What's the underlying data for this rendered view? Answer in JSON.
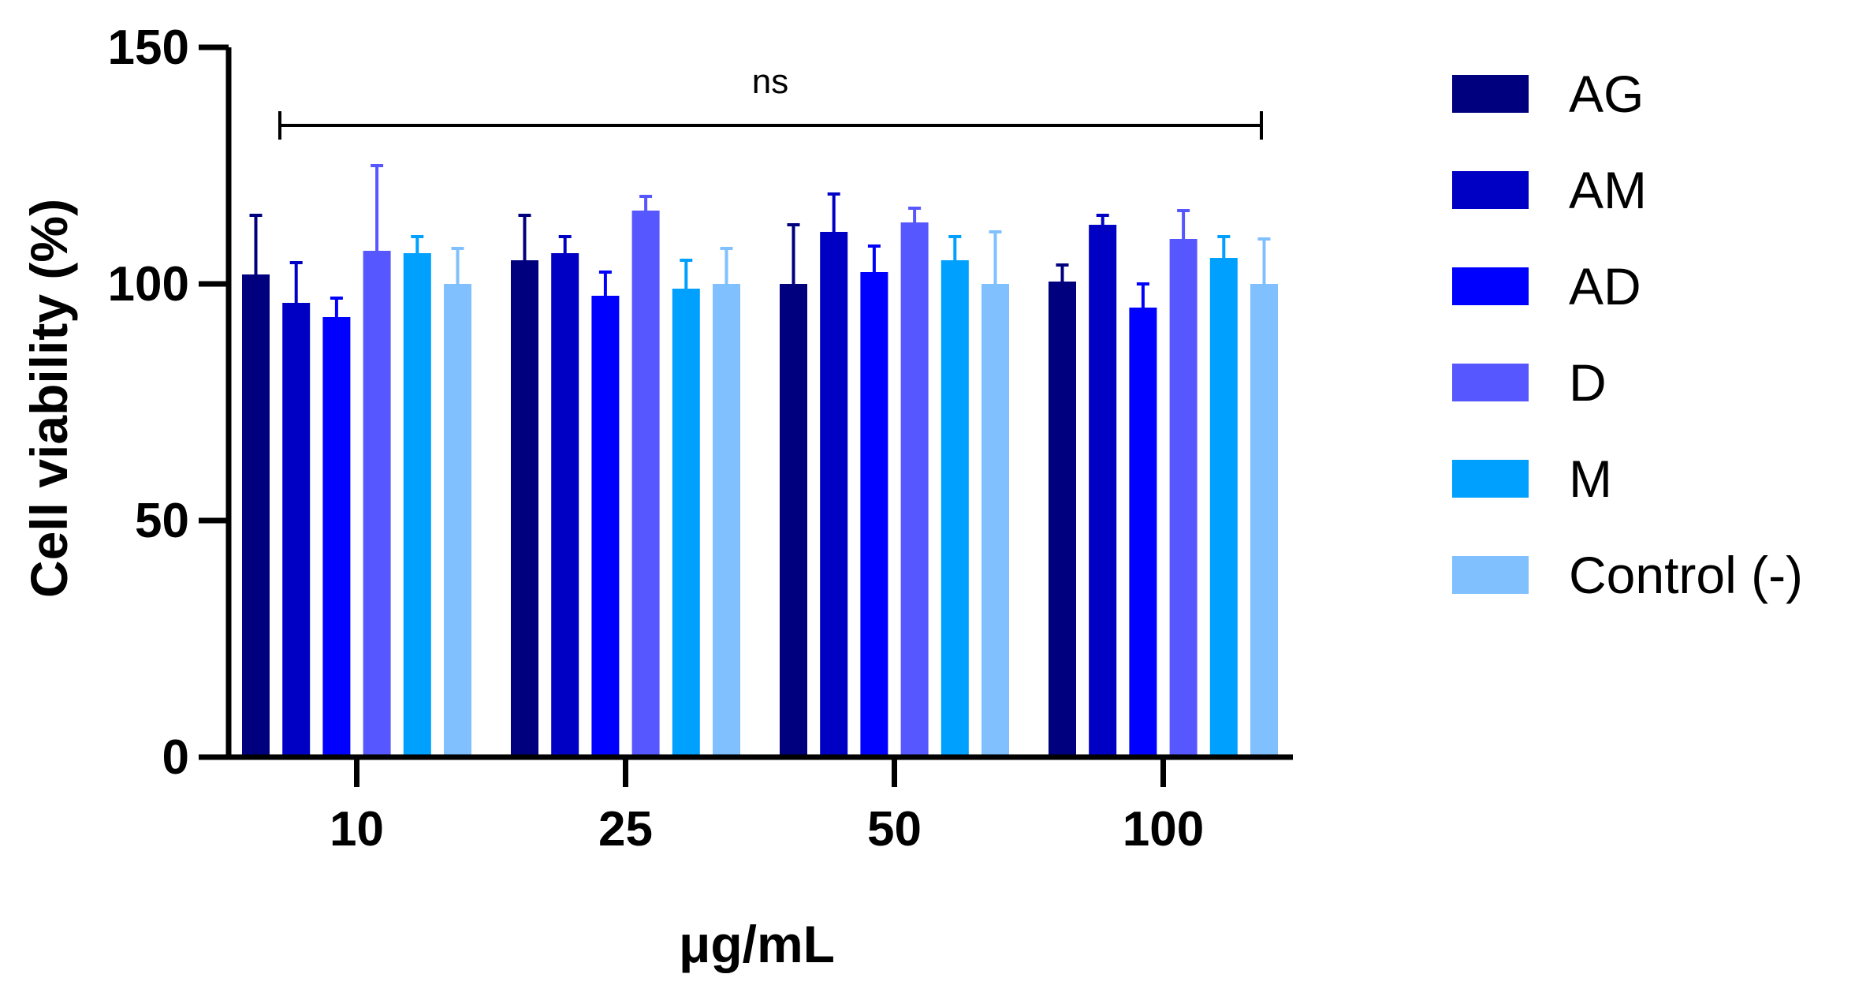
{
  "chart_data": {
    "type": "bar",
    "ylabel": "Cell viability (%)",
    "xlabel": "μg/mL",
    "ylim": [
      0,
      150
    ],
    "yticks": [
      "0",
      "50",
      "100",
      "150"
    ],
    "categories": [
      "10",
      "25",
      "50",
      "100"
    ],
    "series": [
      {
        "name": "AG",
        "color": "#00007f",
        "values": [
          102,
          105,
          100,
          100.5
        ],
        "errors": [
          12.5,
          9.5,
          12.5,
          3.5
        ]
      },
      {
        "name": "AM",
        "color": "#0000c4",
        "values": [
          96,
          106.5,
          111,
          112.5
        ],
        "errors": [
          8.5,
          3.5,
          8,
          2
        ]
      },
      {
        "name": "AD",
        "color": "#0000ff",
        "values": [
          93,
          97.5,
          102.5,
          95
        ],
        "errors": [
          4,
          5,
          5.5,
          5
        ]
      },
      {
        "name": "D",
        "color": "#5757ff",
        "values": [
          107,
          115.5,
          113,
          109.5
        ],
        "errors": [
          18,
          3,
          3,
          6
        ]
      },
      {
        "name": "M",
        "color": "#00a0ff",
        "values": [
          106.5,
          99,
          105,
          105.5
        ],
        "errors": [
          3.5,
          6,
          5,
          4.5
        ]
      },
      {
        "name": "Control (-)",
        "color": "#80c0ff",
        "values": [
          100,
          100,
          100,
          100
        ],
        "errors": [
          7.5,
          7.5,
          11,
          9.5
        ]
      }
    ],
    "significance": {
      "label": "ns",
      "from": "10",
      "to": "100"
    },
    "legend_position": "right",
    "grid": false
  }
}
